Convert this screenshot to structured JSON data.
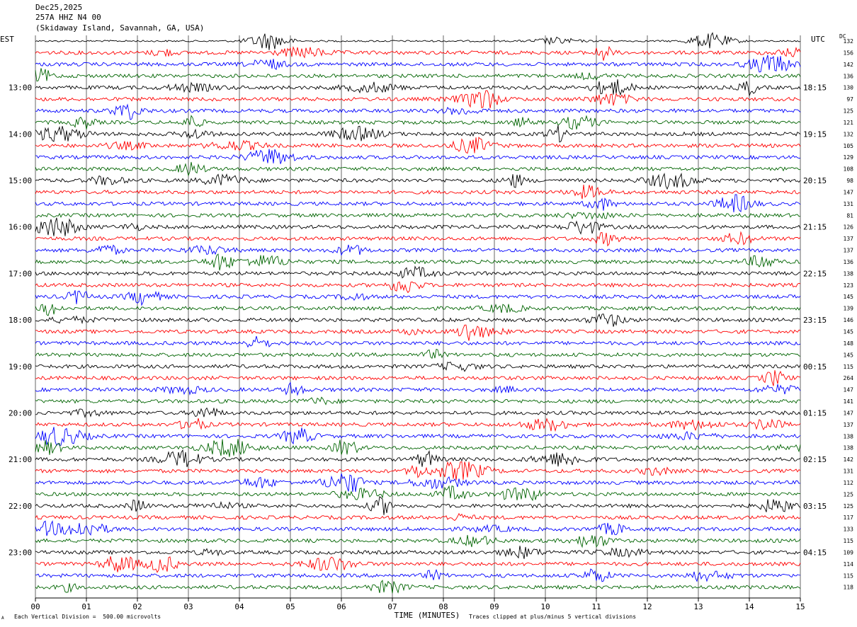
{
  "header": {
    "date": "Dec25,2025",
    "station": "257A HHZ N4 00",
    "location": "(Skidaway Island, Savannah, GA, USA)"
  },
  "left_zone_label": "EST",
  "right_zone_label": "UTC",
  "dc_label": "DC",
  "footer": {
    "scale_note": "Each Vertical Division =  500.00 microvolts",
    "clip_note": "Traces clipped at plus/minus 5 vertical divisions",
    "corner_mark": "A"
  },
  "colors": {
    "trace_cycle": [
      "#000000",
      "#ff0000",
      "#0000ff",
      "#006400"
    ],
    "grid": "#000000"
  },
  "chart_data": {
    "type": "line",
    "title": "",
    "xlabel": "TIME (MINUTES)",
    "ylabel": "",
    "xlim": [
      0,
      15
    ],
    "x_ticks": [
      "00",
      "01",
      "02",
      "03",
      "04",
      "05",
      "06",
      "07",
      "08",
      "09",
      "10",
      "11",
      "12",
      "13",
      "14",
      "15"
    ],
    "row_count": 48,
    "row_minutes": 15,
    "left_hour_labels": [
      {
        "row": 4,
        "label": "13:00"
      },
      {
        "row": 8,
        "label": "14:00"
      },
      {
        "row": 12,
        "label": "15:00"
      },
      {
        "row": 16,
        "label": "16:00"
      },
      {
        "row": 20,
        "label": "17:00"
      },
      {
        "row": 24,
        "label": "18:00"
      },
      {
        "row": 28,
        "label": "19:00"
      },
      {
        "row": 32,
        "label": "20:00"
      },
      {
        "row": 36,
        "label": "21:00"
      },
      {
        "row": 40,
        "label": "22:00"
      },
      {
        "row": 44,
        "label": "23:00"
      }
    ],
    "right_hour_labels": [
      {
        "row": 4,
        "label": "18:15"
      },
      {
        "row": 8,
        "label": "19:15"
      },
      {
        "row": 12,
        "label": "20:15"
      },
      {
        "row": 16,
        "label": "21:15"
      },
      {
        "row": 20,
        "label": "22:15"
      },
      {
        "row": 24,
        "label": "23:15"
      },
      {
        "row": 28,
        "label": "00:15"
      },
      {
        "row": 32,
        "label": "01:15"
      },
      {
        "row": 36,
        "label": "02:15"
      },
      {
        "row": 40,
        "label": "03:15"
      },
      {
        "row": 44,
        "label": "04:15"
      }
    ],
    "dc_offsets": [
      132,
      156,
      142,
      136,
      130,
      97,
      125,
      121,
      132,
      105,
      129,
      108,
      98,
      147,
      131,
      81,
      126,
      137,
      137,
      136,
      138,
      123,
      145,
      139,
      146,
      145,
      148,
      145,
      115,
      264,
      147,
      141,
      147,
      137,
      138,
      138,
      142,
      131,
      112,
      125,
      125,
      117,
      133,
      115,
      109,
      114,
      115,
      118
    ]
  }
}
